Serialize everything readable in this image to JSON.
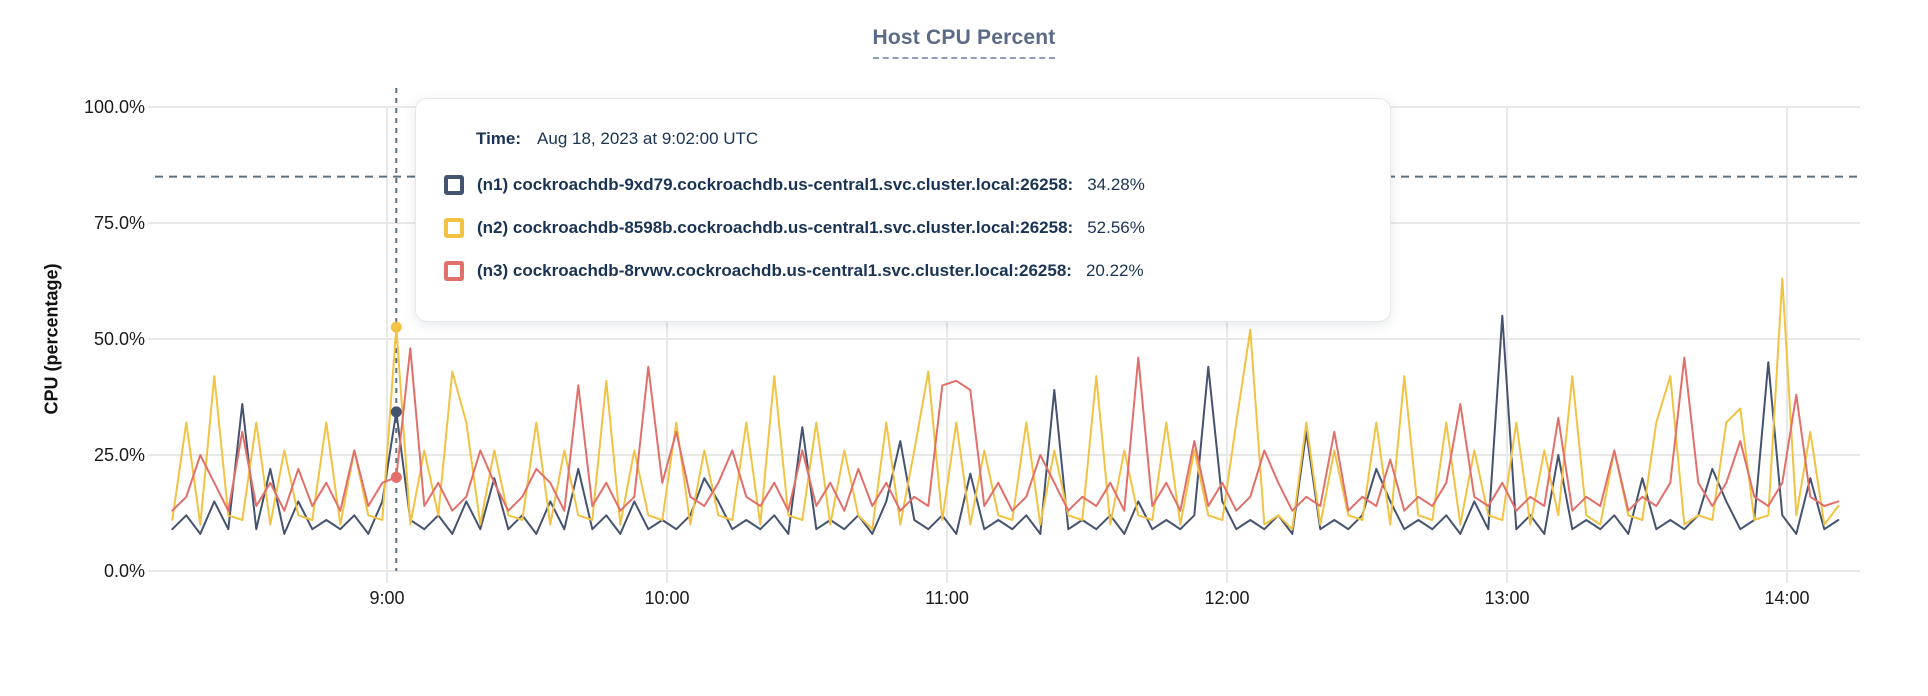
{
  "header": {
    "title": "Host CPU Percent"
  },
  "tooltip": {
    "time_label": "Time:",
    "time_value": "Aug 18, 2023 at 9:02:00 UTC",
    "rows": [
      {
        "label": "(n1) cockroachdb-9xd79.cockroachdb.us-central1.svc.cluster.local:26258:",
        "value": "34.28%",
        "color": "#44536f"
      },
      {
        "label": "(n2) cockroachdb-8598b.cockroachdb.us-central1.svc.cluster.local:26258:",
        "value": "52.56%",
        "color": "#f2c343"
      },
      {
        "label": "(n3) cockroachdb-8rvwv.cockroachdb.us-central1.svc.cluster.local:26258:",
        "value": "20.22%",
        "color": "#e2706a"
      }
    ]
  },
  "chart_data": {
    "type": "line",
    "title": "Host CPU Percent",
    "xlabel": "",
    "ylabel": "CPU (percentage)",
    "ylim": [
      0,
      100
    ],
    "grid": true,
    "legend_position": "tooltip-overlay",
    "y_ticks": [
      0,
      25,
      50,
      75,
      100
    ],
    "y_tick_labels": [
      "0.0%",
      "25.0%",
      "50.0%",
      "75.0%",
      "100.0%"
    ],
    "x_tick_labels": [
      "9:00",
      "10:00",
      "11:00",
      "12:00",
      "13:00",
      "14:00"
    ],
    "x_tick_minutes": [
      540,
      600,
      660,
      720,
      780,
      840
    ],
    "x_start_minutes": 494,
    "x_step_minutes": 3,
    "threshold_percent": 85,
    "hover": {
      "time": "Aug 18, 2023 at 9:02:00 UTC",
      "x_minutes": 542,
      "values": [
        34.28,
        52.56,
        20.22
      ]
    },
    "series": [
      {
        "name": "(n1) cockroachdb-9xd79.cockroachdb.us-central1.svc.cluster.local:26258",
        "color": "#44536f",
        "values": [
          9,
          12,
          8,
          15,
          9,
          36,
          9,
          22,
          8,
          15,
          9,
          11,
          9,
          12,
          8,
          15,
          34.28,
          11,
          9,
          12,
          8,
          15,
          9,
          20,
          9,
          12,
          8,
          15,
          9,
          22,
          9,
          12,
          8,
          15,
          9,
          11,
          9,
          12,
          20,
          15,
          9,
          11,
          9,
          12,
          8,
          31,
          9,
          11,
          9,
          12,
          8,
          15,
          28,
          11,
          9,
          12,
          8,
          21,
          9,
          11,
          9,
          12,
          8,
          39,
          9,
          11,
          9,
          12,
          8,
          15,
          9,
          11,
          9,
          12,
          44,
          15,
          9,
          11,
          9,
          12,
          8,
          30,
          9,
          11,
          9,
          12,
          22,
          15,
          9,
          11,
          9,
          12,
          8,
          15,
          9,
          55,
          9,
          12,
          8,
          25,
          9,
          11,
          9,
          12,
          8,
          20,
          9,
          11,
          9,
          12,
          22,
          15,
          9,
          11,
          45,
          12,
          8,
          20,
          9,
          11
        ]
      },
      {
        "name": "(n2) cockroachdb-8598b.cockroachdb.us-central1.svc.cluster.local:26258",
        "color": "#f2c343",
        "values": [
          11,
          32,
          10,
          42,
          12,
          11,
          32,
          10,
          26,
          12,
          11,
          32,
          10,
          26,
          12,
          11,
          52.56,
          10,
          26,
          12,
          43,
          32,
          10,
          26,
          12,
          11,
          32,
          10,
          26,
          12,
          11,
          41,
          10,
          26,
          12,
          11,
          32,
          10,
          26,
          12,
          11,
          32,
          10,
          42,
          12,
          11,
          32,
          10,
          26,
          12,
          9,
          32,
          10,
          26,
          43,
          11,
          32,
          10,
          26,
          12,
          11,
          32,
          10,
          26,
          12,
          11,
          42,
          10,
          26,
          12,
          11,
          32,
          10,
          26,
          12,
          11,
          32,
          52,
          10,
          12,
          9,
          32,
          10,
          26,
          12,
          11,
          32,
          10,
          42,
          12,
          11,
          32,
          10,
          26,
          12,
          11,
          32,
          10,
          26,
          12,
          42,
          12,
          10,
          26,
          12,
          11,
          32,
          42,
          10,
          12,
          11,
          32,
          35,
          11,
          12,
          63,
          12,
          30,
          10,
          14
        ]
      },
      {
        "name": "(n3) cockroachdb-8rvwv.cockroachdb.us-central1.svc.cluster.local:26258",
        "color": "#e2706a",
        "values": [
          13,
          16,
          25,
          19,
          13,
          30,
          14,
          19,
          13,
          22,
          14,
          19,
          13,
          26,
          14,
          19,
          20.22,
          48,
          14,
          19,
          13,
          16,
          26,
          19,
          13,
          16,
          22,
          19,
          13,
          40,
          14,
          19,
          13,
          16,
          44,
          19,
          30,
          16,
          14,
          19,
          26,
          16,
          14,
          19,
          13,
          26,
          14,
          19,
          13,
          22,
          14,
          19,
          13,
          16,
          14,
          40,
          41,
          39,
          14,
          19,
          13,
          16,
          25,
          19,
          13,
          16,
          14,
          19,
          13,
          46,
          14,
          19,
          13,
          28,
          14,
          19,
          13,
          16,
          26,
          19,
          13,
          16,
          14,
          30,
          13,
          16,
          14,
          24,
          13,
          16,
          14,
          19,
          36,
          16,
          14,
          19,
          13,
          16,
          14,
          33,
          13,
          16,
          14,
          26,
          13,
          16,
          14,
          19,
          46,
          19,
          14,
          19,
          28,
          16,
          14,
          19,
          38,
          16,
          14,
          15
        ]
      }
    ]
  }
}
